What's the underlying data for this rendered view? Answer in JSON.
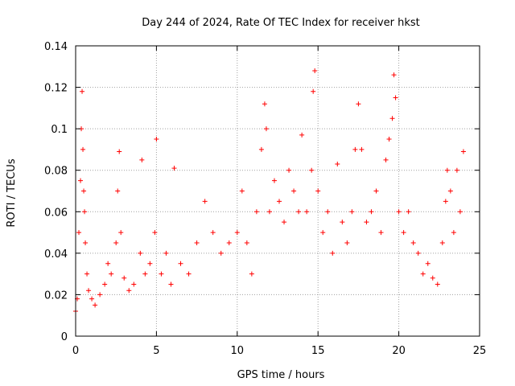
{
  "chart_data": {
    "type": "scatter",
    "title": "Day 244 of 2024, Rate Of TEC Index for receiver hkst",
    "xlabel": "GPS time / hours",
    "ylabel": "ROTI / TECUs",
    "xlim": [
      0,
      25
    ],
    "ylim": [
      0,
      0.14
    ],
    "x_ticks": [
      "0",
      "5",
      "10",
      "15",
      "20",
      "25"
    ],
    "y_ticks": [
      "0",
      "0.02",
      "0.04",
      "0.06",
      "0.08",
      "0.1",
      "0.12",
      "0.14"
    ],
    "grid": true,
    "legend": "none",
    "marker": "+",
    "color": "#ff0000",
    "series": [
      {
        "x": [
          0.0,
          0.1,
          0.2,
          0.3,
          0.35,
          0.4,
          0.45,
          0.5,
          0.55,
          0.6,
          0.7,
          0.8,
          1.0,
          1.2,
          1.5,
          1.8,
          2.0,
          2.2,
          2.5,
          2.6,
          2.7,
          2.8,
          3.0,
          3.3,
          3.6,
          4.0,
          4.1,
          4.3,
          4.6,
          4.9,
          5.0,
          5.3,
          5.6,
          5.9,
          6.1,
          6.5,
          7.0,
          7.5,
          8.0,
          8.5,
          9.0,
          9.5,
          10.0,
          10.3,
          10.6,
          10.9,
          11.2,
          11.5,
          11.7,
          11.8,
          12.0,
          12.3,
          12.6,
          12.9,
          13.2,
          13.5,
          13.8,
          14.0,
          14.3,
          14.6,
          14.7,
          14.8,
          15.0,
          15.3,
          15.6,
          15.9,
          16.2,
          16.5,
          16.8,
          17.1,
          17.3,
          17.5,
          17.7,
          18.0,
          18.3,
          18.6,
          18.9,
          19.2,
          19.4,
          19.6,
          19.7,
          19.8,
          20.0,
          20.3,
          20.6,
          20.9,
          21.2,
          21.5,
          21.8,
          22.1,
          22.4,
          22.7,
          22.9,
          23.0,
          23.2,
          23.4,
          23.6,
          23.8,
          24.0
        ],
        "y": [
          0.012,
          0.018,
          0.05,
          0.075,
          0.1,
          0.118,
          0.09,
          0.07,
          0.06,
          0.045,
          0.03,
          0.022,
          0.018,
          0.015,
          0.02,
          0.025,
          0.035,
          0.03,
          0.045,
          0.07,
          0.089,
          0.05,
          0.028,
          0.022,
          0.025,
          0.04,
          0.085,
          0.03,
          0.035,
          0.05,
          0.095,
          0.03,
          0.04,
          0.025,
          0.081,
          0.035,
          0.03,
          0.045,
          0.065,
          0.05,
          0.04,
          0.045,
          0.05,
          0.07,
          0.045,
          0.03,
          0.06,
          0.09,
          0.112,
          0.1,
          0.06,
          0.075,
          0.065,
          0.055,
          0.08,
          0.07,
          0.06,
          0.097,
          0.06,
          0.08,
          0.118,
          0.128,
          0.07,
          0.05,
          0.06,
          0.04,
          0.083,
          0.055,
          0.045,
          0.06,
          0.09,
          0.112,
          0.09,
          0.055,
          0.06,
          0.07,
          0.05,
          0.085,
          0.095,
          0.105,
          0.126,
          0.115,
          0.06,
          0.05,
          0.06,
          0.045,
          0.04,
          0.03,
          0.035,
          0.028,
          0.025,
          0.045,
          0.065,
          0.08,
          0.07,
          0.05,
          0.08,
          0.06,
          0.089
        ]
      }
    ]
  }
}
